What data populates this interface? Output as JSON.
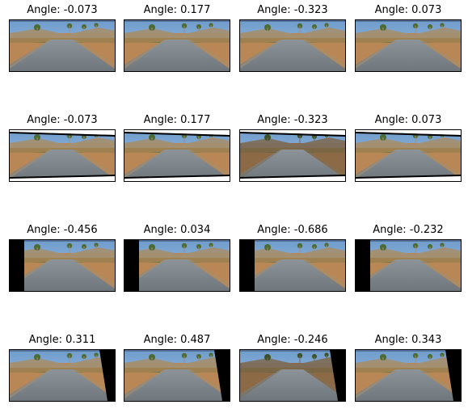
{
  "figure": {
    "panels": [
      {
        "angle_label": "Angle: -0.073",
        "black_bar": "none",
        "tint": "normal"
      },
      {
        "angle_label": "Angle: 0.177",
        "black_bar": "none",
        "tint": "normal"
      },
      {
        "angle_label": "Angle: -0.323",
        "black_bar": "none",
        "tint": "normal"
      },
      {
        "angle_label": "Angle: 0.073",
        "black_bar": "none",
        "tint": "normal"
      },
      {
        "angle_label": "Angle: -0.073",
        "black_bar": "skewed",
        "tint": "normal"
      },
      {
        "angle_label": "Angle: 0.177",
        "black_bar": "skewed",
        "tint": "normal"
      },
      {
        "angle_label": "Angle: -0.323",
        "black_bar": "skewed",
        "tint": "dark"
      },
      {
        "angle_label": "Angle: 0.073",
        "black_bar": "skewed",
        "tint": "normal"
      },
      {
        "angle_label": "Angle: -0.456",
        "black_bar": "left",
        "tint": "normal"
      },
      {
        "angle_label": "Angle: 0.034",
        "black_bar": "left",
        "tint": "normal"
      },
      {
        "angle_label": "Angle: -0.686",
        "black_bar": "left",
        "tint": "normal"
      },
      {
        "angle_label": "Angle: -0.232",
        "black_bar": "left",
        "tint": "normal"
      },
      {
        "angle_label": "Angle: 0.311",
        "black_bar": "right",
        "tint": "normal"
      },
      {
        "angle_label": "Angle: 0.487",
        "black_bar": "right",
        "tint": "normal"
      },
      {
        "angle_label": "Angle: -0.246",
        "black_bar": "right",
        "tint": "dark"
      },
      {
        "angle_label": "Angle: 0.343",
        "black_bar": "right",
        "tint": "normal"
      }
    ],
    "colors": {
      "sky": "#6f9ccc",
      "sky_light": "#a9c7e6",
      "road": "#8c949a",
      "road_dark": "#6f777d",
      "dirt": "#b98755",
      "rocks": "#a28f73",
      "trees": "#4d6a33",
      "bushes": "#69754b"
    }
  }
}
